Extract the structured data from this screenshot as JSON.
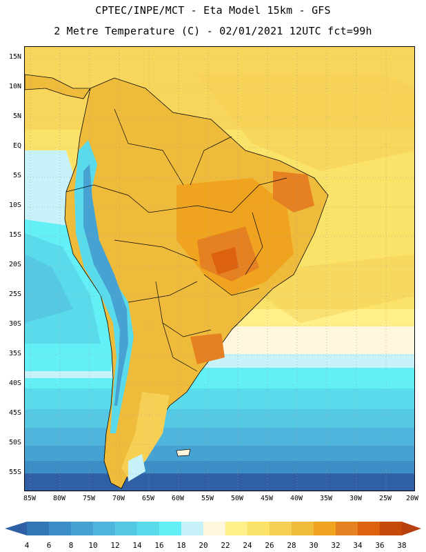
{
  "header": {
    "line1": "CPTEC/INPE/MCT -  Eta Model 15km - GFS",
    "line2": "2 Metre Temperature (C) - 02/01/2021 12UTC fct=99h"
  },
  "latitude_labels": [
    "15N",
    "10N",
    "5N",
    "EQ",
    "5S",
    "10S",
    "15S",
    "20S",
    "25S",
    "30S",
    "35S",
    "40S",
    "45S",
    "50S",
    "55S"
  ],
  "longitude_labels": [
    "85W",
    "80W",
    "75W",
    "70W",
    "65W",
    "60W",
    "55W",
    "50W",
    "45W",
    "40W",
    "35W",
    "30W",
    "25W",
    "20W"
  ],
  "colorbar": {
    "labels": [
      "4",
      "6",
      "8",
      "10",
      "12",
      "14",
      "16",
      "18",
      "20",
      "22",
      "24",
      "26",
      "28",
      "30",
      "32",
      "34",
      "36",
      "38"
    ],
    "colors": [
      "#2f5fa5",
      "#3178b5",
      "#3c8ec6",
      "#46a2d2",
      "#4fb5dc",
      "#55c8e4",
      "#5adbec",
      "#62f0f6",
      "#c8f2fa",
      "#fff6de",
      "#fff08a",
      "#fbe36a",
      "#f5d055",
      "#efbb3a",
      "#f0a31e",
      "#e68121",
      "#dd6210",
      "#c44a0a",
      "#b8400f"
    ]
  }
}
